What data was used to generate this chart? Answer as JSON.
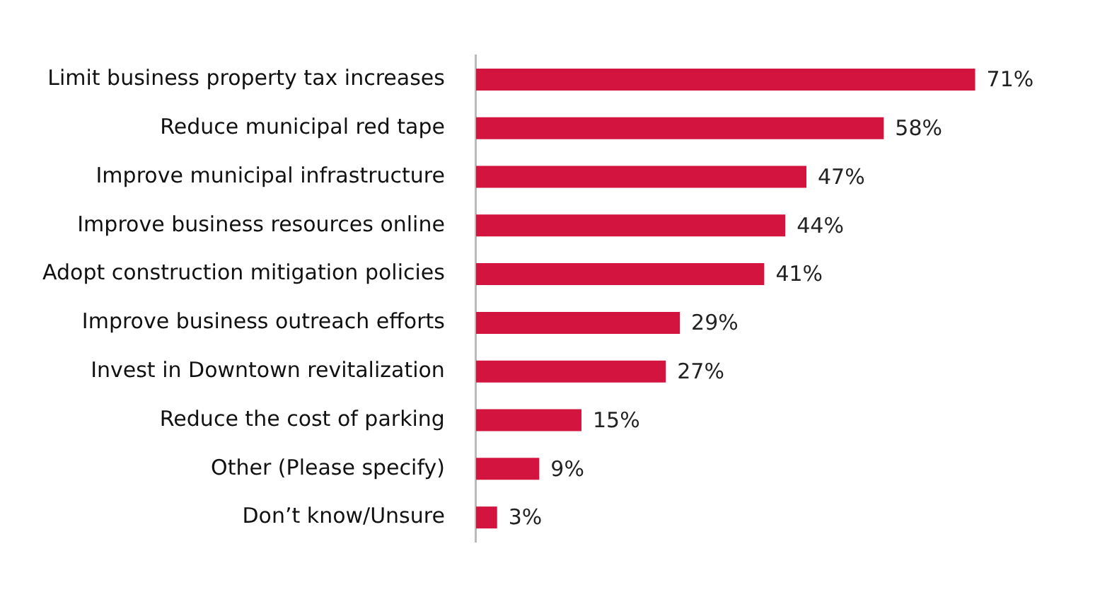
{
  "chart_data": {
    "type": "bar",
    "orientation": "horizontal",
    "categories": [
      "Limit business property tax increases",
      "Reduce municipal red tape",
      "Improve municipal infrastructure",
      "Improve business resources online",
      "Adopt construction mitigation policies",
      "Improve business outreach efforts",
      "Invest in Downtown revitalization",
      "Reduce the cost of parking",
      "Other (Please specify)",
      "Don’t know/Unsure"
    ],
    "values": [
      71,
      58,
      47,
      44,
      41,
      29,
      27,
      15,
      9,
      3
    ],
    "value_labels": [
      "71%",
      "58%",
      "47%",
      "44%",
      "41%",
      "29%",
      "27%",
      "15%",
      "9%",
      "3%"
    ],
    "color": "#d2143f",
    "legend": false
  }
}
